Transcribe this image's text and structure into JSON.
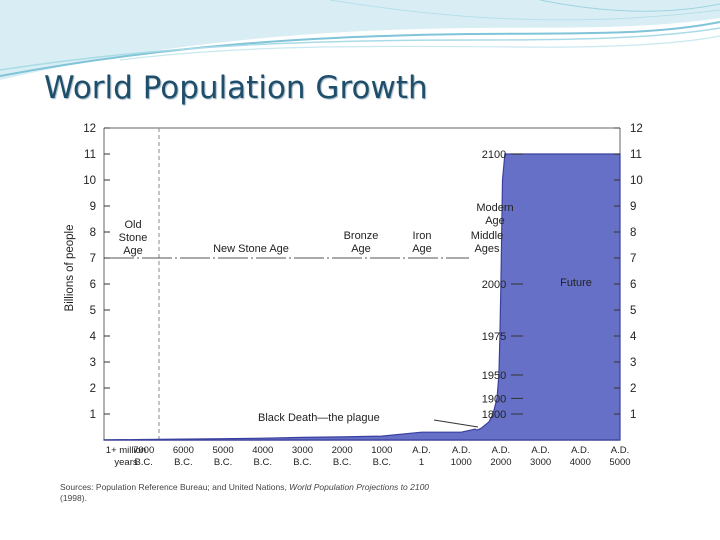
{
  "slide": {
    "title": "World Population Growth"
  },
  "colors": {
    "fill": "#6670c6",
    "stroke": "#3a40a0",
    "title": "#1f4e6b",
    "wave": "#7fc4d8"
  },
  "chart_data": {
    "type": "area",
    "ylabel": "Billions of people",
    "ylim": [
      0,
      12
    ],
    "y_ticks": [
      "1",
      "2",
      "3",
      "4",
      "5",
      "6",
      "7",
      "8",
      "9",
      "10",
      "11",
      "12"
    ],
    "x_ticks": [
      [
        "1+ million",
        "years"
      ],
      [
        "7000",
        "B.C."
      ],
      [
        "6000",
        "B.C."
      ],
      [
        "5000",
        "B.C."
      ],
      [
        "4000",
        "B.C."
      ],
      [
        "3000",
        "B.C."
      ],
      [
        "2000",
        "B.C."
      ],
      [
        "1000",
        "B.C."
      ],
      [
        "A.D.",
        "1"
      ],
      [
        "A.D.",
        "1000"
      ],
      [
        "A.D.",
        "2000"
      ],
      [
        "A.D.",
        "3000"
      ],
      [
        "A.D.",
        "4000"
      ],
      [
        "A.D.",
        "5000"
      ]
    ],
    "x_axis_years": [
      -1000000,
      -7000,
      -6000,
      -5000,
      -4000,
      -3000,
      -2000,
      -1000,
      1,
      1000,
      2000,
      3000,
      4000,
      5000
    ],
    "series": [
      {
        "points": [
          [
            -1000000,
            0.005
          ],
          [
            -7000,
            0.02
          ],
          [
            -5000,
            0.05
          ],
          [
            -4000,
            0.07
          ],
          [
            -3000,
            0.1
          ],
          [
            -2000,
            0.12
          ],
          [
            -1000,
            0.15
          ],
          [
            1,
            0.3
          ],
          [
            1000,
            0.3
          ],
          [
            1350,
            0.42
          ],
          [
            1400,
            0.38
          ],
          [
            1500,
            0.45
          ],
          [
            1700,
            0.7
          ],
          [
            1800,
            1.0
          ],
          [
            1900,
            1.6
          ],
          [
            1950,
            2.5
          ],
          [
            1975,
            4.0
          ],
          [
            2000,
            6.0
          ],
          [
            2020,
            8.0
          ],
          [
            2040,
            10.0
          ],
          [
            2100,
            11.0
          ],
          [
            5000,
            11.0
          ]
        ]
      }
    ],
    "year_markers": [
      "1800",
      "1900",
      "1950",
      "1975",
      "2000",
      "2100"
    ],
    "eras": [
      {
        "lines": [
          "Old",
          "Stone",
          "Age"
        ]
      },
      {
        "lines": [
          "New Stone Age"
        ]
      },
      {
        "lines": [
          "Bronze",
          "Age"
        ]
      },
      {
        "lines": [
          "Iron",
          "Age"
        ]
      },
      {
        "lines": [
          "Middle",
          "Ages"
        ]
      },
      {
        "lines": [
          "Modern",
          "Age"
        ]
      }
    ],
    "annotations": {
      "black_death": "Black Death—the plague",
      "future": "Future"
    }
  },
  "source": {
    "prefix": "Sources: Population Reference Bureau; and United Nations, ",
    "italic": "World Population Projections to 2100",
    "suffix": "(1998)."
  }
}
